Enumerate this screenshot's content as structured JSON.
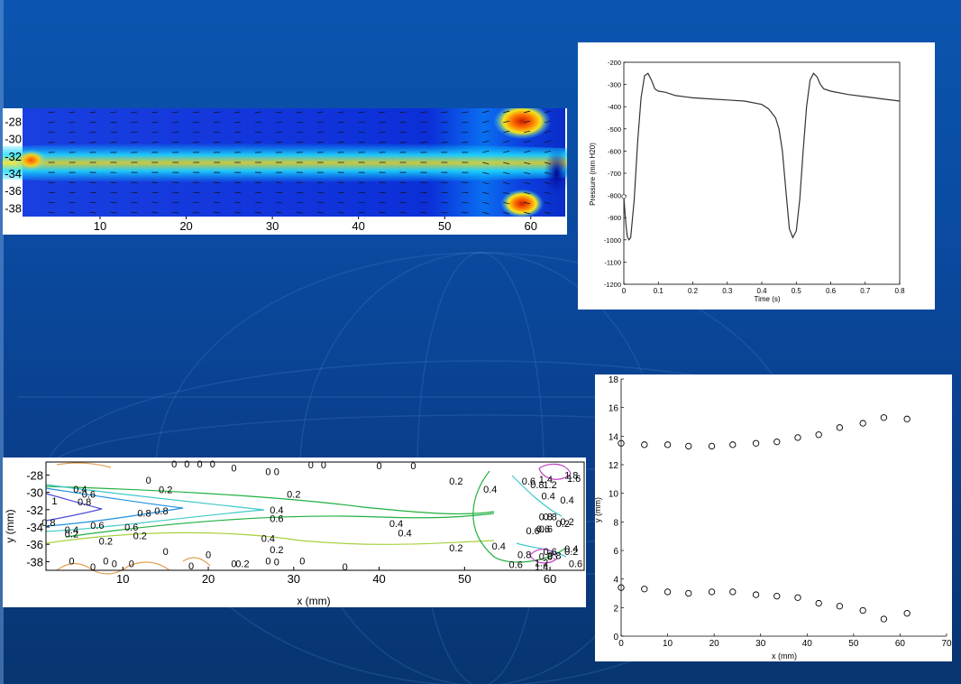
{
  "colors": {
    "slide_bg": "#0a4aa0",
    "jet_low": "#00008f",
    "jet_high": "#7f0000",
    "trace": "#333333"
  },
  "chart_data": [
    {
      "type": "heatmap",
      "title": "",
      "x_ticks": [
        10,
        20,
        30,
        40,
        50,
        60
      ],
      "y_ticks": [
        -28,
        -30,
        -32,
        -34,
        -36,
        -38
      ],
      "xlim": [
        1,
        64
      ],
      "ylim": [
        -39,
        -26.5
      ],
      "colormap": "jet",
      "overlay": "velocity-vectors"
    },
    {
      "type": "line",
      "xlabel": "Time (s)",
      "ylabel": "Pressure (mm H20)",
      "xlim": [
        0,
        0.8
      ],
      "ylim": [
        -1200,
        -200
      ],
      "x_ticks": [
        "0",
        "0.1",
        "0.2",
        "0.3",
        "0.4",
        "0.5",
        "0.6",
        "0.7",
        "0.8"
      ],
      "y_ticks": [
        "-200",
        "-300",
        "-400",
        "-500",
        "-600",
        "-700",
        "-800",
        "-900",
        "-1000",
        "-1100",
        "-1200"
      ],
      "series": [
        {
          "marker": "o",
          "x": [
            0,
            0.003,
            0.006,
            0.01,
            0.015,
            0.02,
            0.03,
            0.04,
            0.05,
            0.06,
            0.07,
            0.08,
            0.09,
            0.1,
            0.12,
            0.15,
            0.2,
            0.25,
            0.3,
            0.35,
            0.4,
            0.42,
            0.44,
            0.45,
            0.46,
            0.47,
            0.48,
            0.49,
            0.5,
            0.51,
            0.52,
            0.53,
            0.54,
            0.55,
            0.56,
            0.57,
            0.58,
            0.6,
            0.65,
            0.7,
            0.75,
            0.8
          ],
          "y": [
            -805,
            -870,
            -930,
            -985,
            -1000,
            -990,
            -820,
            -560,
            -360,
            -260,
            -250,
            -280,
            -320,
            -330,
            -335,
            -350,
            -360,
            -365,
            -370,
            -375,
            -390,
            -410,
            -450,
            -500,
            -600,
            -780,
            -950,
            -990,
            -960,
            -820,
            -600,
            -400,
            -280,
            -250,
            -265,
            -300,
            -320,
            -330,
            -345,
            -355,
            -365,
            -375
          ]
        }
      ]
    },
    {
      "type": "contour",
      "xlabel": "x (mm)",
      "ylabel": "y (mm)",
      "x_ticks": [
        10,
        20,
        30,
        40,
        50,
        60
      ],
      "y_ticks": [
        -28,
        -30,
        -32,
        -34,
        -36,
        -38
      ],
      "xlim": [
        1,
        64
      ],
      "ylim": [
        -39,
        -26.5
      ],
      "level_labels": [
        "0",
        "0",
        "0",
        "0",
        "0",
        "0",
        "0",
        "0",
        "0",
        "0",
        "0",
        "0",
        "0",
        "0",
        "0",
        "0",
        "0",
        "0",
        "0",
        "0",
        "0",
        "0",
        "0",
        "0",
        "0",
        "0.2",
        "0.2",
        "0.2",
        "0.2",
        "0.2",
        "0.2",
        "0.2",
        "0.2",
        "0.4",
        "0.4",
        "0.4",
        "0.4",
        "0.4",
        "0.4",
        "0.4",
        "0.4",
        "0.4",
        "0.4",
        "0.6",
        "0.6",
        "0.6",
        "0.6",
        "0.6",
        "0.6",
        "0.6",
        "0.6",
        "0.6",
        "0.8",
        "0.8",
        "0.8",
        "0.8",
        "0.8",
        "0.8",
        "1",
        "1.2",
        "1.2",
        "1.4",
        "1.4",
        "1.8",
        "1.6",
        "0.8",
        "0.2",
        "0.6",
        "0.8",
        "0.2",
        "0.4",
        "0.8",
        "0.2",
        "0.6",
        "0.8",
        "0.2"
      ]
    },
    {
      "type": "scatter",
      "xlabel": "x (mm)",
      "ylabel": "y (mm)",
      "xlim": [
        0,
        70
      ],
      "ylim": [
        0,
        18
      ],
      "x_ticks": [
        "0",
        "10",
        "20",
        "30",
        "40",
        "50",
        "60",
        "70"
      ],
      "y_ticks": [
        "0",
        "2",
        "4",
        "6",
        "8",
        "10",
        "12",
        "14",
        "16",
        "18"
      ],
      "series": [
        {
          "marker": "o",
          "x": [
            0,
            5,
            10,
            14.5,
            19.5,
            24,
            29,
            33.5,
            38,
            42.5,
            47,
            52,
            56.5,
            61.5
          ],
          "y": [
            13.5,
            13.4,
            13.4,
            13.3,
            13.3,
            13.4,
            13.5,
            13.6,
            13.9,
            14.1,
            14.6,
            14.9,
            15.3,
            15.2
          ]
        },
        {
          "marker": "o",
          "x": [
            0,
            5,
            10,
            14.5,
            19.5,
            24,
            29,
            33.5,
            38,
            42.5,
            47,
            52,
            56.5,
            61.5
          ],
          "y": [
            3.4,
            3.3,
            3.1,
            3.0,
            3.1,
            3.1,
            2.9,
            2.8,
            2.7,
            2.3,
            2.1,
            1.8,
            1.2,
            1.6
          ]
        }
      ]
    }
  ]
}
